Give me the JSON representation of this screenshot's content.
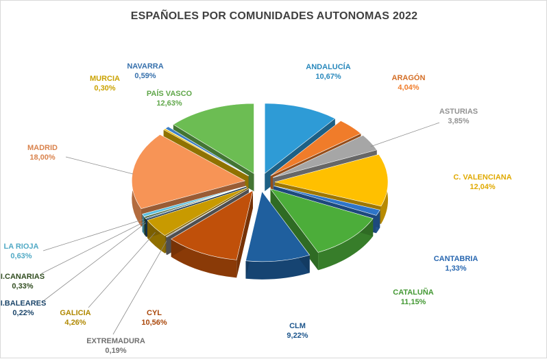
{
  "chart_data": {
    "type": "pie",
    "title": "ESPAÑOLES POR COMUNIDADES AUTONOMAS 2022",
    "slices": [
      {
        "name": "ANDALUCÍA",
        "value": 10.67,
        "display": "10,67%",
        "color": "#2e9bd6"
      },
      {
        "name": "ARAGÓN",
        "value": 4.04,
        "display": "4,04%",
        "color": "#f07c2a"
      },
      {
        "name": "ASTURIAS",
        "value": 3.85,
        "display": "3,85%",
        "color": "#a6a6a6"
      },
      {
        "name": "C. VALENCIANA",
        "value": 12.04,
        "display": "12,04%",
        "color": "#ffc000"
      },
      {
        "name": "CANTABRIA",
        "value": 1.33,
        "display": "1,33%",
        "color": "#2e75c8"
      },
      {
        "name": "CATALUÑA",
        "value": 11.15,
        "display": "11,15%",
        "color": "#4cad3a"
      },
      {
        "name": "CLM",
        "value": 9.22,
        "display": "9,22%",
        "color": "#1f5f9e"
      },
      {
        "name": "CYL",
        "value": 10.56,
        "display": "10,56%",
        "color": "#c0500a"
      },
      {
        "name": "EXTREMADURA",
        "value": 0.19,
        "display": "0,19%",
        "color": "#7f7f7f"
      },
      {
        "name": "GALICIA",
        "value": 4.26,
        "display": "4,26%",
        "color": "#c89a00"
      },
      {
        "name": "I.BALEARES",
        "value": 0.22,
        "display": "0,22%",
        "color": "#1f4e79"
      },
      {
        "name": "I.CANARIAS",
        "value": 0.33,
        "display": "0,33%",
        "color": "#375623"
      },
      {
        "name": "LA RIOJA",
        "value": 0.63,
        "display": "0,63%",
        "color": "#5bc0e0"
      },
      {
        "name": "MADRID",
        "value": 18.0,
        "display": "18,00%",
        "color": "#f79456"
      },
      {
        "name": "MURCIA",
        "value": 0.3,
        "display": "0,30%",
        "color": "#e6b800"
      },
      {
        "name": "NAVARRA",
        "value": 0.59,
        "display": "0,59%",
        "color": "#3d7fc4"
      },
      {
        "name": "PAÍS VASCO",
        "value": 12.63,
        "display": "12,63%",
        "color": "#6cbd53"
      }
    ],
    "legend": "none",
    "exploded": true,
    "style": "3d"
  }
}
